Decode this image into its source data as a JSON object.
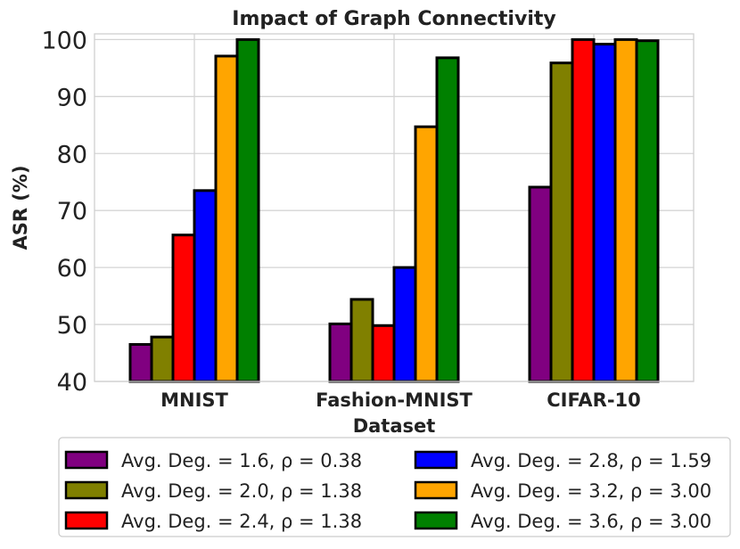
{
  "chart_data": {
    "type": "bar",
    "title": "Impact of Graph Connectivity",
    "xlabel": "Dataset",
    "ylabel": "ASR (%)",
    "ylim": [
      40,
      101
    ],
    "yticks": [
      "40",
      "50",
      "60",
      "70",
      "80",
      "90",
      "100"
    ],
    "categories": [
      "MNIST",
      "Fashion-MNIST",
      "CIFAR-10"
    ],
    "grid": true,
    "legend_position": "bottom",
    "series": [
      {
        "name": "Avg. Deg. = 1.6, ρ = 0.38",
        "color": "#800080",
        "values": [
          46.5,
          50.1,
          74.1
        ]
      },
      {
        "name": "Avg. Deg. = 2.0, ρ = 1.38",
        "color": "#808000",
        "values": [
          47.8,
          54.4,
          95.9
        ]
      },
      {
        "name": "Avg. Deg. = 2.4, ρ = 1.38",
        "color": "#ff0000",
        "values": [
          65.7,
          49.8,
          100.0
        ]
      },
      {
        "name": "Avg. Deg. = 2.8, ρ = 1.59",
        "color": "#0000ff",
        "values": [
          73.5,
          60.0,
          99.2
        ]
      },
      {
        "name": "Avg. Deg. = 3.2, ρ = 3.00",
        "color": "#ffa500",
        "values": [
          97.1,
          84.7,
          100.0
        ]
      },
      {
        "name": "Avg. Deg. = 3.6, ρ = 3.00",
        "color": "#008000",
        "values": [
          100.0,
          96.8,
          99.8
        ]
      }
    ]
  }
}
